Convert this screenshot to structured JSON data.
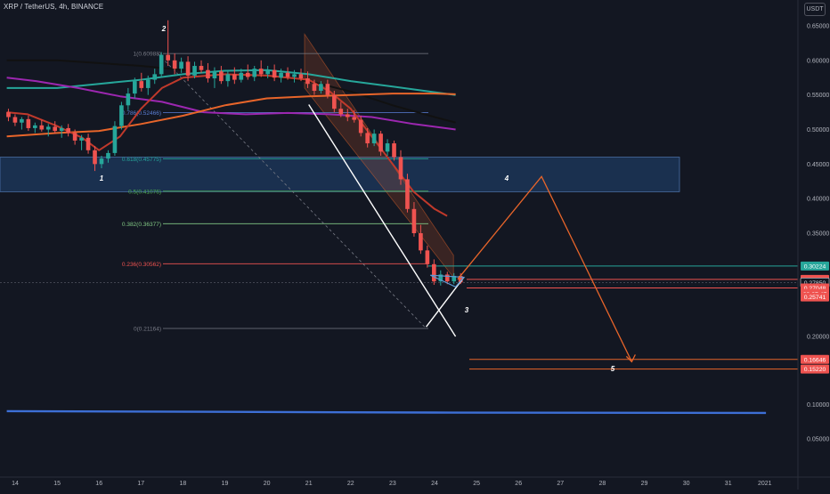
{
  "header": {
    "symbol_title": "XRP / TetherUS, 4h, BINANCE",
    "currency": "USDT"
  },
  "colors": {
    "background": "#131722",
    "axis_text": "#b2b5be",
    "bull_candle": "#26a69a",
    "bear_candle": "#ef5350",
    "resistance_zone": "#1e3a5f",
    "projection": "#e8652a",
    "long_term_line": "#3d6fd6"
  },
  "chart_data": {
    "type": "candlestick",
    "title": "XRP / TetherUS, 4h, BINANCE",
    "y_axis": {
      "ticks": [
        0.65,
        0.6,
        0.55,
        0.5,
        0.45,
        0.4,
        0.35,
        0.2,
        0.1,
        0.05
      ],
      "tick_labels": [
        "0.65000",
        "0.60000",
        "0.55000",
        "0.50000",
        "0.45000",
        "0.40000",
        "0.35000",
        "0.20000",
        "0.10000",
        "0.05000"
      ]
    },
    "x_axis": {
      "ticks": [
        14,
        15,
        16,
        17,
        18,
        19,
        20,
        21,
        22,
        23,
        24,
        25,
        26,
        27,
        28,
        29,
        30,
        31,
        2021
      ],
      "tick_labels": [
        "14",
        "15",
        "16",
        "17",
        "18",
        "19",
        "20",
        "21",
        "22",
        "23",
        "24",
        "25",
        "26",
        "27",
        "28",
        "29",
        "30",
        "31",
        "2021"
      ]
    },
    "price_tags": [
      {
        "label": "0.30224",
        "value": 0.30224,
        "color": "#26a69a"
      },
      {
        "label": "0.28298",
        "value": 0.28298,
        "color": "#ef5350"
      },
      {
        "label": "0.27850",
        "value": 0.2785,
        "color": "#131722"
      },
      {
        "label": "0.27048",
        "value": 0.27048,
        "color": "#ef5350"
      },
      {
        "label": "03:27:47",
        "value": 0.2625,
        "color": "#ef5350"
      },
      {
        "label": "0.25741",
        "value": 0.25741,
        "color": "#ef5350"
      },
      {
        "label": "0.16646",
        "value": 0.16646,
        "color": "#ef5350"
      },
      {
        "label": "0.15220",
        "value": 0.1522,
        "color": "#ef5350"
      }
    ],
    "fibonacci_levels": [
      {
        "label": "1(0.60988)",
        "value": 0.60988,
        "color": "#787b86"
      },
      {
        "label": "0.786(0.52466)",
        "value": 0.52466,
        "color": "#5b7fd6"
      },
      {
        "label": "0.618(0.45775)",
        "value": 0.45775,
        "color": "#26a69a"
      },
      {
        "label": "0.5(0.41076)",
        "value": 0.41076,
        "color": "#4caf50"
      },
      {
        "label": "0.382(0.36377)",
        "value": 0.36377,
        "color": "#81c784"
      },
      {
        "label": "0.236(0.30562)",
        "value": 0.30562,
        "color": "#ef5350"
      },
      {
        "label": "0(0.21164)",
        "value": 0.21164,
        "color": "#787b86"
      }
    ],
    "wave_labels": [
      "1",
      "2",
      "3",
      "4",
      "5"
    ],
    "resistance_zone": {
      "from": 0.41,
      "to": 0.46
    },
    "candles": [
      {
        "o": 0.525,
        "h": 0.53,
        "l": 0.512,
        "c": 0.518
      },
      {
        "o": 0.518,
        "h": 0.522,
        "l": 0.505,
        "c": 0.51
      },
      {
        "o": 0.51,
        "h": 0.518,
        "l": 0.5,
        "c": 0.515
      },
      {
        "o": 0.515,
        "h": 0.52,
        "l": 0.498,
        "c": 0.502
      },
      {
        "o": 0.502,
        "h": 0.51,
        "l": 0.495,
        "c": 0.506
      },
      {
        "o": 0.506,
        "h": 0.514,
        "l": 0.497,
        "c": 0.5
      },
      {
        "o": 0.5,
        "h": 0.508,
        "l": 0.49,
        "c": 0.504
      },
      {
        "o": 0.504,
        "h": 0.512,
        "l": 0.494,
        "c": 0.498
      },
      {
        "o": 0.498,
        "h": 0.506,
        "l": 0.488,
        "c": 0.502
      },
      {
        "o": 0.502,
        "h": 0.508,
        "l": 0.49,
        "c": 0.495
      },
      {
        "o": 0.495,
        "h": 0.5,
        "l": 0.478,
        "c": 0.484
      },
      {
        "o": 0.484,
        "h": 0.492,
        "l": 0.47,
        "c": 0.488
      },
      {
        "o": 0.488,
        "h": 0.494,
        "l": 0.465,
        "c": 0.47
      },
      {
        "o": 0.47,
        "h": 0.476,
        "l": 0.44,
        "c": 0.45
      },
      {
        "o": 0.45,
        "h": 0.462,
        "l": 0.444,
        "c": 0.458
      },
      {
        "o": 0.458,
        "h": 0.47,
        "l": 0.452,
        "c": 0.466
      },
      {
        "o": 0.466,
        "h": 0.512,
        "l": 0.462,
        "c": 0.505
      },
      {
        "o": 0.505,
        "h": 0.54,
        "l": 0.5,
        "c": 0.535
      },
      {
        "o": 0.535,
        "h": 0.56,
        "l": 0.528,
        "c": 0.552
      },
      {
        "o": 0.552,
        "h": 0.575,
        "l": 0.545,
        "c": 0.57
      },
      {
        "o": 0.57,
        "h": 0.582,
        "l": 0.555,
        "c": 0.56
      },
      {
        "o": 0.56,
        "h": 0.578,
        "l": 0.55,
        "c": 0.572
      },
      {
        "o": 0.572,
        "h": 0.588,
        "l": 0.566,
        "c": 0.58
      },
      {
        "o": 0.58,
        "h": 0.612,
        "l": 0.575,
        "c": 0.608
      },
      {
        "o": 0.608,
        "h": 0.658,
        "l": 0.592,
        "c": 0.6
      },
      {
        "o": 0.6,
        "h": 0.61,
        "l": 0.58,
        "c": 0.588
      },
      {
        "o": 0.588,
        "h": 0.604,
        "l": 0.582,
        "c": 0.598
      },
      {
        "o": 0.598,
        "h": 0.606,
        "l": 0.57,
        "c": 0.578
      },
      {
        "o": 0.578,
        "h": 0.598,
        "l": 0.574,
        "c": 0.592
      },
      {
        "o": 0.592,
        "h": 0.6,
        "l": 0.582,
        "c": 0.586
      },
      {
        "o": 0.586,
        "h": 0.596,
        "l": 0.568,
        "c": 0.574
      },
      {
        "o": 0.574,
        "h": 0.59,
        "l": 0.56,
        "c": 0.584
      },
      {
        "o": 0.584,
        "h": 0.592,
        "l": 0.566,
        "c": 0.57
      },
      {
        "o": 0.57,
        "h": 0.586,
        "l": 0.562,
        "c": 0.58
      },
      {
        "o": 0.58,
        "h": 0.59,
        "l": 0.566,
        "c": 0.572
      },
      {
        "o": 0.572,
        "h": 0.588,
        "l": 0.568,
        "c": 0.582
      },
      {
        "o": 0.582,
        "h": 0.594,
        "l": 0.572,
        "c": 0.576
      },
      {
        "o": 0.576,
        "h": 0.592,
        "l": 0.57,
        "c": 0.588
      },
      {
        "o": 0.588,
        "h": 0.6,
        "l": 0.576,
        "c": 0.58
      },
      {
        "o": 0.58,
        "h": 0.592,
        "l": 0.574,
        "c": 0.586
      },
      {
        "o": 0.586,
        "h": 0.594,
        "l": 0.57,
        "c": 0.575
      },
      {
        "o": 0.575,
        "h": 0.588,
        "l": 0.568,
        "c": 0.582
      },
      {
        "o": 0.582,
        "h": 0.59,
        "l": 0.572,
        "c": 0.576
      },
      {
        "o": 0.576,
        "h": 0.586,
        "l": 0.568,
        "c": 0.58
      },
      {
        "o": 0.58,
        "h": 0.588,
        "l": 0.57,
        "c": 0.574
      },
      {
        "o": 0.574,
        "h": 0.584,
        "l": 0.56,
        "c": 0.566
      },
      {
        "o": 0.566,
        "h": 0.572,
        "l": 0.55,
        "c": 0.556
      },
      {
        "o": 0.556,
        "h": 0.57,
        "l": 0.552,
        "c": 0.566
      },
      {
        "o": 0.566,
        "h": 0.572,
        "l": 0.545,
        "c": 0.55
      },
      {
        "o": 0.55,
        "h": 0.556,
        "l": 0.525,
        "c": 0.53
      },
      {
        "o": 0.53,
        "h": 0.54,
        "l": 0.518,
        "c": 0.522
      },
      {
        "o": 0.522,
        "h": 0.53,
        "l": 0.512,
        "c": 0.518
      },
      {
        "o": 0.518,
        "h": 0.528,
        "l": 0.51,
        "c": 0.514
      },
      {
        "o": 0.514,
        "h": 0.52,
        "l": 0.49,
        "c": 0.495
      },
      {
        "o": 0.495,
        "h": 0.502,
        "l": 0.474,
        "c": 0.48
      },
      {
        "o": 0.48,
        "h": 0.5,
        "l": 0.476,
        "c": 0.494
      },
      {
        "o": 0.494,
        "h": 0.498,
        "l": 0.462,
        "c": 0.468
      },
      {
        "o": 0.468,
        "h": 0.486,
        "l": 0.462,
        "c": 0.48
      },
      {
        "o": 0.48,
        "h": 0.484,
        "l": 0.455,
        "c": 0.46
      },
      {
        "o": 0.46,
        "h": 0.47,
        "l": 0.42,
        "c": 0.428
      },
      {
        "o": 0.428,
        "h": 0.436,
        "l": 0.38,
        "c": 0.385
      },
      {
        "o": 0.385,
        "h": 0.395,
        "l": 0.345,
        "c": 0.35
      },
      {
        "o": 0.35,
        "h": 0.362,
        "l": 0.32,
        "c": 0.325
      },
      {
        "o": 0.325,
        "h": 0.332,
        "l": 0.3,
        "c": 0.305
      },
      {
        "o": 0.305,
        "h": 0.312,
        "l": 0.275,
        "c": 0.28
      },
      {
        "o": 0.28,
        "h": 0.296,
        "l": 0.274,
        "c": 0.29
      },
      {
        "o": 0.29,
        "h": 0.294,
        "l": 0.276,
        "c": 0.28
      },
      {
        "o": 0.28,
        "h": 0.292,
        "l": 0.276,
        "c": 0.288
      },
      {
        "o": 0.288,
        "h": 0.292,
        "l": 0.276,
        "c": 0.2785
      }
    ],
    "moving_averages": [
      {
        "color": "#111111",
        "points": [
          [
            13.8,
            0.6
          ],
          [
            15,
            0.6
          ],
          [
            17,
            0.592
          ],
          [
            19,
            0.58
          ],
          [
            21,
            0.57
          ],
          [
            22,
            0.555
          ],
          [
            23,
            0.535
          ],
          [
            24,
            0.518
          ],
          [
            24.5,
            0.51
          ]
        ]
      },
      {
        "color": "#26a69a",
        "points": [
          [
            13.8,
            0.56
          ],
          [
            15,
            0.56
          ],
          [
            16,
            0.566
          ],
          [
            17,
            0.572
          ],
          [
            18,
            0.58
          ],
          [
            19,
            0.585
          ],
          [
            20,
            0.586
          ],
          [
            21,
            0.58
          ],
          [
            22,
            0.57
          ],
          [
            23,
            0.562
          ],
          [
            24,
            0.554
          ],
          [
            24.5,
            0.55
          ]
        ]
      },
      {
        "color": "#9c27b0",
        "points": [
          [
            13.8,
            0.575
          ],
          [
            14.5,
            0.57
          ],
          [
            15.5,
            0.56
          ],
          [
            16.5,
            0.548
          ],
          [
            17.5,
            0.54
          ],
          [
            18.5,
            0.525
          ],
          [
            19.5,
            0.522
          ],
          [
            20.5,
            0.524
          ],
          [
            21.5,
            0.522
          ],
          [
            22.5,
            0.518
          ],
          [
            23.5,
            0.508
          ],
          [
            24.5,
            0.5
          ]
        ]
      },
      {
        "color": "#e8652a",
        "points": [
          [
            13.8,
            0.49
          ],
          [
            15,
            0.495
          ],
          [
            16,
            0.498
          ],
          [
            17,
            0.508
          ],
          [
            18,
            0.52
          ],
          [
            19,
            0.535
          ],
          [
            20,
            0.545
          ],
          [
            21,
            0.548
          ],
          [
            22,
            0.55
          ],
          [
            23,
            0.552
          ],
          [
            24,
            0.552
          ],
          [
            24.5,
            0.551
          ]
        ]
      },
      {
        "color": "#c0392b",
        "points": [
          [
            13.8,
            0.525
          ],
          [
            14.3,
            0.522
          ],
          [
            15,
            0.505
          ],
          [
            15.6,
            0.488
          ],
          [
            16,
            0.47
          ],
          [
            16.5,
            0.49
          ],
          [
            17,
            0.53
          ],
          [
            17.5,
            0.56
          ],
          [
            18,
            0.575
          ],
          [
            19,
            0.58
          ],
          [
            20,
            0.578
          ],
          [
            21,
            0.572
          ],
          [
            21.5,
            0.555
          ],
          [
            22,
            0.53
          ],
          [
            22.5,
            0.49
          ],
          [
            23,
            0.45
          ],
          [
            23.5,
            0.41
          ],
          [
            24,
            0.385
          ],
          [
            24.3,
            0.375
          ]
        ]
      }
    ],
    "long_term_line": {
      "points": [
        [
          13.8,
          0.0905
        ],
        [
          24,
          0.0885
        ],
        [
          31.9,
          0.088
        ]
      ]
    },
    "projection_path": [
      [
        24.55,
        0.283
      ],
      [
        26.55,
        0.432
      ],
      [
        28.7,
        0.163
      ]
    ],
    "fib_anchor_lines": [
      [
        [
          17.4,
          0.6099
        ],
        [
          23.8,
          0.2116
        ]
      ]
    ],
    "wedge_lines": [
      [
        [
          21.0,
          0.536
        ],
        [
          24.5,
          0.2
        ]
      ],
      [
        [
          23.8,
          0.214
        ],
        [
          24.7,
          0.286
        ]
      ]
    ]
  }
}
